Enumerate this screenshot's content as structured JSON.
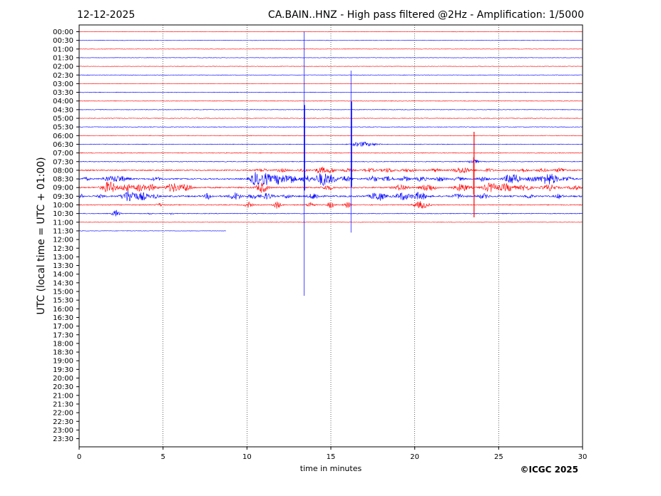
{
  "header": {
    "date": "12-12-2025",
    "title": "CA.BAIN..HNZ - High pass filtered @2Hz - Amplification: 1/5000"
  },
  "footer": {
    "copyright": "©ICGC 2025"
  },
  "colors": {
    "trace_red": "#ff0000",
    "trace_blue": "#0000ff",
    "frame": "#000000"
  },
  "chart_data": {
    "type": "line",
    "subtype": "helicorder",
    "title": "CA.BAIN..HNZ - High pass filtered @2Hz - Amplification: 1/5000",
    "xlabel": "time in minutes",
    "ylabel": "UTC (local time = UTC + 01:00)",
    "xlim": [
      0,
      30
    ],
    "x_ticks": [
      "0",
      "5",
      "10",
      "15",
      "20",
      "25",
      "30"
    ],
    "x_tick_values": [
      0,
      5,
      10,
      15,
      20,
      25,
      30
    ],
    "grid": "vertical dotted lines at 5, 10, 15, 20, 25 minutes",
    "row_labels": [
      "00:00",
      "00:30",
      "01:00",
      "01:30",
      "02:00",
      "02:30",
      "03:00",
      "03:30",
      "04:00",
      "04:30",
      "05:00",
      "05:30",
      "06:00",
      "06:30",
      "07:00",
      "07:30",
      "08:00",
      "08:30",
      "09:00",
      "09:30",
      "10:00",
      "10:30",
      "11:00",
      "11:30",
      "12:00",
      "12:30",
      "13:00",
      "13:30",
      "14:00",
      "14:30",
      "15:00",
      "15:30",
      "16:00",
      "16:30",
      "17:00",
      "17:30",
      "18:00",
      "18:30",
      "19:00",
      "19:30",
      "20:00",
      "20:30",
      "21:00",
      "21:30",
      "22:00",
      "22:30",
      "23:00",
      "23:30"
    ],
    "traces": [
      {
        "row": 0,
        "color": "red",
        "end": 30,
        "noise": 0.3,
        "bursts": []
      },
      {
        "row": 1,
        "color": "blue",
        "end": 30,
        "noise": 0.3,
        "bursts": []
      },
      {
        "row": 2,
        "color": "red",
        "end": 30,
        "noise": 0.3,
        "bursts": []
      },
      {
        "row": 3,
        "color": "blue",
        "end": 30,
        "noise": 0.3,
        "bursts": []
      },
      {
        "row": 4,
        "color": "red",
        "end": 30,
        "noise": 0.3,
        "bursts": []
      },
      {
        "row": 5,
        "color": "blue",
        "end": 30,
        "noise": 0.3,
        "bursts": []
      },
      {
        "row": 6,
        "color": "red",
        "end": 30,
        "noise": 0.3,
        "bursts": []
      },
      {
        "row": 7,
        "color": "blue",
        "end": 30,
        "noise": 0.4,
        "bursts": []
      },
      {
        "row": 8,
        "color": "red",
        "end": 30,
        "noise": 0.4,
        "bursts": []
      },
      {
        "row": 9,
        "color": "blue",
        "end": 30,
        "noise": 0.4,
        "bursts": []
      },
      {
        "row": 10,
        "color": "red",
        "end": 30,
        "noise": 0.4,
        "bursts": []
      },
      {
        "row": 11,
        "color": "blue",
        "end": 30,
        "noise": 0.4,
        "bursts": []
      },
      {
        "row": 12,
        "color": "red",
        "end": 30,
        "noise": 0.4,
        "bursts": []
      },
      {
        "row": 13,
        "color": "blue",
        "end": 30,
        "noise": 0.4,
        "bursts": [
          [
            16.7,
            0.5,
            2.5
          ],
          [
            17.3,
            0.6,
            1.5
          ]
        ]
      },
      {
        "row": 14,
        "color": "red",
        "end": 30,
        "noise": 0.5,
        "bursts": []
      },
      {
        "row": 15,
        "color": "blue",
        "end": 30,
        "noise": 0.5,
        "bursts": [
          [
            23.5,
            0.3,
            3
          ]
        ]
      },
      {
        "row": 16,
        "color": "red",
        "end": 30,
        "noise": 0.8,
        "bursts": [
          [
            10.9,
            0.3,
            2
          ],
          [
            12.1,
            0.3,
            2
          ],
          [
            13.3,
            0.3,
            2
          ],
          [
            14.4,
            0.3,
            4
          ],
          [
            15.0,
            0.3,
            3
          ],
          [
            16.0,
            0.3,
            2
          ],
          [
            17.3,
            0.3,
            2.5
          ],
          [
            18.4,
            0.4,
            2.5
          ],
          [
            19.6,
            0.4,
            2
          ],
          [
            21.2,
            0.3,
            2
          ],
          [
            22.8,
            0.5,
            4
          ],
          [
            24.4,
            0.3,
            2
          ],
          [
            26.4,
            0.3,
            2.5
          ],
          [
            27.6,
            0.3,
            2
          ],
          [
            28.7,
            0.3,
            3
          ]
        ]
      },
      {
        "row": 17,
        "color": "blue",
        "end": 30,
        "noise": 0.9,
        "bursts": [
          [
            0.4,
            0.2,
            2
          ],
          [
            1.6,
            0.2,
            2
          ],
          [
            2.3,
            0.6,
            4
          ],
          [
            4.6,
            0.3,
            2
          ],
          [
            10.5,
            0.3,
            9
          ],
          [
            11.1,
            0.3,
            8
          ],
          [
            11.9,
            0.4,
            7
          ],
          [
            12.6,
            0.3,
            6
          ],
          [
            13.5,
            0.3,
            5
          ],
          [
            14.5,
            0.4,
            9
          ],
          [
            15.1,
            0.3,
            4
          ],
          [
            15.9,
            0.3,
            4
          ],
          [
            17.5,
            0.3,
            4
          ],
          [
            18.4,
            0.3,
            3
          ],
          [
            19.4,
            0.3,
            3
          ],
          [
            20.4,
            0.3,
            3
          ],
          [
            21.5,
            0.3,
            3
          ],
          [
            22.6,
            0.3,
            2
          ],
          [
            24.0,
            0.3,
            3
          ],
          [
            25.8,
            0.4,
            8
          ],
          [
            27.0,
            0.3,
            4
          ],
          [
            28.0,
            0.5,
            8
          ],
          [
            29.1,
            0.3,
            3
          ]
        ]
      },
      {
        "row": 18,
        "color": "red",
        "end": 30,
        "noise": 0.9,
        "bursts": [
          [
            1.8,
            0.4,
            8
          ],
          [
            2.8,
            0.3,
            5
          ],
          [
            3.6,
            0.3,
            5
          ],
          [
            4.3,
            0.3,
            4
          ],
          [
            5.6,
            0.4,
            6
          ],
          [
            6.4,
            0.3,
            5
          ],
          [
            10.9,
            0.3,
            7
          ],
          [
            14.8,
            0.3,
            3
          ],
          [
            19.2,
            0.4,
            4
          ],
          [
            20.8,
            0.4,
            5
          ],
          [
            22.8,
            0.4,
            5
          ],
          [
            24.5,
            0.4,
            6
          ],
          [
            25.5,
            0.5,
            5
          ],
          [
            26.6,
            0.3,
            4
          ],
          [
            28.0,
            0.4,
            4
          ],
          [
            29.5,
            0.3,
            3
          ]
        ]
      },
      {
        "row": 19,
        "color": "blue",
        "end": 30,
        "noise": 1.0,
        "bursts": [
          [
            0.1,
            0.1,
            3
          ],
          [
            1.3,
            0.2,
            2
          ],
          [
            3.0,
            0.4,
            9
          ],
          [
            3.8,
            0.3,
            5
          ],
          [
            4.5,
            0.2,
            3
          ],
          [
            7.7,
            0.2,
            4
          ],
          [
            9.3,
            0.3,
            5
          ],
          [
            10.4,
            0.3,
            3
          ],
          [
            11.2,
            0.3,
            4
          ],
          [
            12.4,
            0.2,
            3
          ],
          [
            14.0,
            0.3,
            4
          ],
          [
            17.8,
            0.4,
            6
          ],
          [
            19.3,
            0.4,
            5
          ],
          [
            20.3,
            0.4,
            5
          ],
          [
            22.6,
            0.3,
            3
          ],
          [
            24.1,
            0.3,
            3
          ],
          [
            26.8,
            0.2,
            3
          ],
          [
            28.6,
            0.2,
            3
          ]
        ]
      },
      {
        "row": 20,
        "color": "red",
        "end": 30,
        "noise": 0.6,
        "bursts": [
          [
            4.8,
            0.2,
            2
          ],
          [
            10.1,
            0.2,
            4
          ],
          [
            11.8,
            0.2,
            5
          ],
          [
            13.8,
            0.2,
            4
          ],
          [
            15.0,
            0.2,
            4
          ],
          [
            16.0,
            0.2,
            4
          ],
          [
            20.4,
            0.4,
            5
          ]
        ]
      },
      {
        "row": 21,
        "color": "blue",
        "end": 30,
        "noise": 0.5,
        "bursts": [
          [
            2.2,
            0.2,
            5
          ],
          [
            4.2,
            0.1,
            2
          ],
          [
            5.5,
            0.1,
            2
          ]
        ]
      },
      {
        "row": 22,
        "color": "red",
        "end": 30,
        "noise": 0.3,
        "bursts": []
      },
      {
        "row": 23,
        "color": "blue",
        "end": 8.75,
        "noise": 0.3,
        "bursts": []
      }
    ],
    "events": [
      {
        "time_min": 13.4,
        "from_row": 0,
        "to_row": 30.5,
        "peak_row": 13.4,
        "color": "blue"
      },
      {
        "time_min": 16.2,
        "from_row": 4.5,
        "to_row": 23.2,
        "peak_row": 13.0,
        "color": "blue"
      },
      {
        "time_min": 23.5,
        "from_row": 14.5,
        "to_row": 18.8,
        "peak_row": 16.5,
        "color": "red"
      }
    ]
  }
}
